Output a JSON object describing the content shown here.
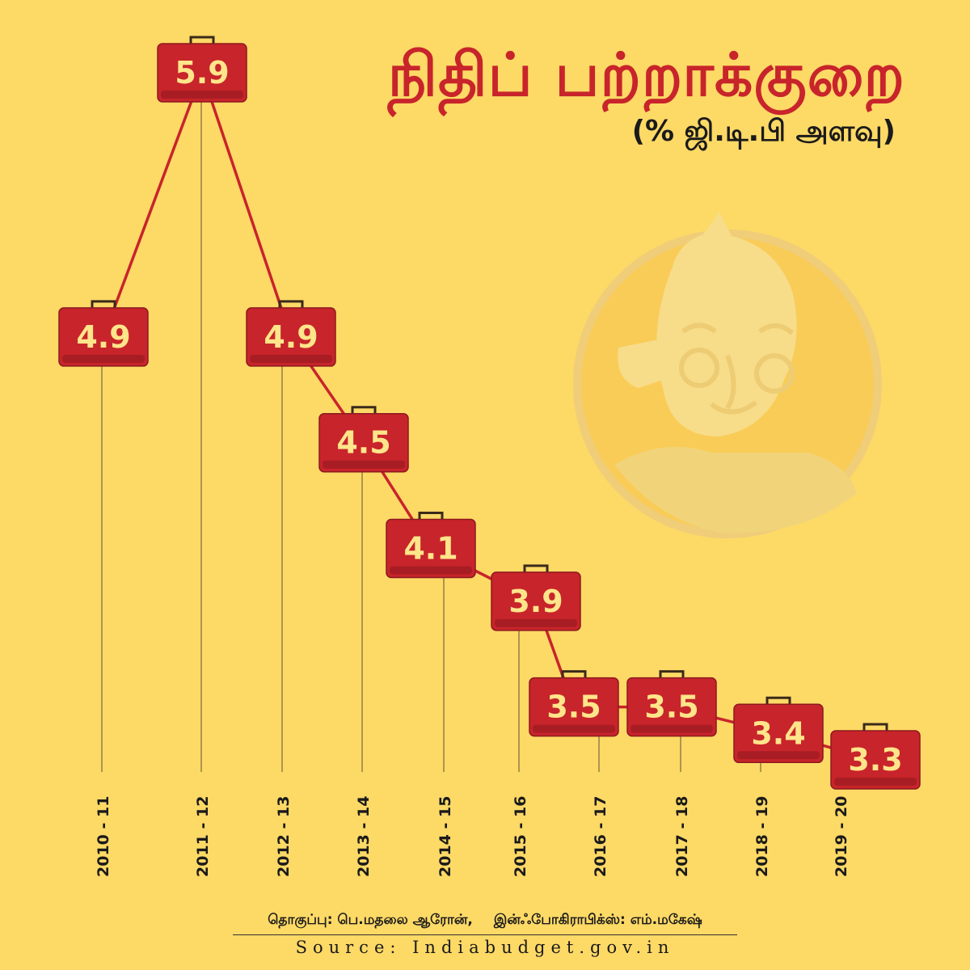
{
  "title": "நிதிப் பற்றாக்குறை",
  "subtitle": "(% ஜி.டி.பி அளவு)",
  "credits": {
    "compiled": "தொகுப்பு: பெ.மதலை ஆரோன்,",
    "infographics": "இன்ஃபோகிராபிக்ஸ்: எம்.மகேஷ்"
  },
  "source": "Source: Indiabudget.gov.in",
  "colors": {
    "background": "#FDD966",
    "accent": "#C8242B",
    "line": "#C8242B",
    "label_text": "#FFE58A"
  },
  "chart_data": {
    "type": "line",
    "categories": [
      "2010 - 11",
      "2011 - 12",
      "2012 - 13",
      "2013 - 14",
      "2014 - 15",
      "2015 - 16",
      "2016 - 17",
      "2017 - 18",
      "2018 - 19",
      "2019 - 20"
    ],
    "values": [
      4.9,
      5.9,
      4.9,
      4.5,
      4.1,
      3.9,
      3.5,
      3.5,
      3.4,
      3.3
    ],
    "data_labels": [
      "4.9",
      "5.9",
      "4.9",
      "4.5",
      "4.1",
      "3.9",
      "3.5",
      "3.5",
      "3.4",
      "3.3"
    ],
    "title": "நிதிப் பற்றாக்குறை",
    "subtitle": "(% ஜி.டி.பி அளவு)",
    "grid": false,
    "marker": "briefcase",
    "decoration": "mascot-coin"
  }
}
